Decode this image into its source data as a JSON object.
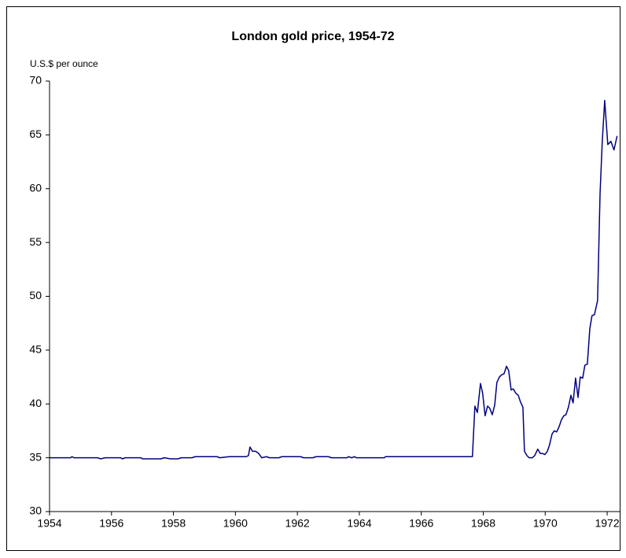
{
  "chart_data": {
    "type": "line",
    "title": "London gold price, 1954-72",
    "y_axis_label": "U.S.$ per ounce",
    "x": [
      1954.0,
      1954.68,
      1954.72,
      1954.8,
      1955.55,
      1955.65,
      1955.8,
      1956.3,
      1956.35,
      1956.45,
      1956.95,
      1957.0,
      1957.6,
      1957.7,
      1957.9,
      1958.15,
      1958.25,
      1958.6,
      1958.7,
      1959.4,
      1959.5,
      1959.8,
      1960.35,
      1960.42,
      1960.47,
      1960.55,
      1960.65,
      1960.75,
      1960.85,
      1961.0,
      1961.1,
      1961.4,
      1961.5,
      1962.1,
      1962.2,
      1962.5,
      1962.6,
      1963.0,
      1963.1,
      1963.6,
      1963.65,
      1963.75,
      1963.85,
      1963.9,
      1964.8,
      1964.85,
      1967.65,
      1967.73,
      1967.81,
      1967.91,
      1967.98,
      1968.06,
      1968.14,
      1968.21,
      1968.29,
      1968.37,
      1968.44,
      1968.52,
      1968.59,
      1968.67,
      1968.75,
      1968.82,
      1968.9,
      1968.97,
      1969.05,
      1969.13,
      1969.2,
      1969.28,
      1969.33,
      1969.41,
      1969.48,
      1969.58,
      1969.66,
      1969.76,
      1969.84,
      1969.91,
      1969.99,
      1970.07,
      1970.14,
      1970.22,
      1970.29,
      1970.37,
      1970.45,
      1970.52,
      1970.6,
      1970.67,
      1970.75,
      1970.83,
      1970.9,
      1970.98,
      1971.06,
      1971.13,
      1971.21,
      1971.28,
      1971.36,
      1971.44,
      1971.51,
      1971.59,
      1971.69,
      1971.77,
      1971.84,
      1971.92,
      1972.02,
      1972.12,
      1972.22,
      1972.32
    ],
    "series": [
      {
        "name": "London gold price",
        "color": "#000080",
        "values": [
          35.0,
          35.0,
          35.1,
          35.0,
          35.0,
          34.9,
          35.0,
          35.0,
          34.9,
          35.0,
          35.0,
          34.9,
          34.9,
          35.0,
          34.9,
          34.9,
          35.0,
          35.0,
          35.1,
          35.1,
          35.0,
          35.1,
          35.1,
          35.2,
          36.0,
          35.6,
          35.6,
          35.4,
          35.0,
          35.1,
          35.0,
          35.0,
          35.1,
          35.1,
          35.0,
          35.0,
          35.1,
          35.1,
          35.0,
          35.0,
          35.1,
          35.0,
          35.1,
          35.0,
          35.0,
          35.1,
          35.1,
          39.8,
          39.2,
          41.9,
          41.0,
          38.9,
          39.8,
          39.6,
          39.0,
          39.9,
          42.0,
          42.5,
          42.7,
          42.8,
          43.5,
          43.1,
          41.3,
          41.4,
          41.0,
          40.8,
          40.2,
          39.7,
          35.6,
          35.2,
          35.0,
          35.0,
          35.2,
          35.8,
          35.4,
          35.4,
          35.3,
          35.6,
          36.2,
          37.2,
          37.5,
          37.4,
          37.9,
          38.5,
          38.9,
          39.0,
          39.7,
          40.8,
          40.1,
          42.4,
          40.6,
          42.5,
          42.4,
          43.6,
          43.7,
          47.0,
          48.2,
          48.3,
          49.6,
          59.5,
          64.3,
          68.2,
          64.1,
          64.4,
          63.6,
          64.9
        ]
      }
    ],
    "xlim": [
      1954,
      1972.43
    ],
    "xticks": [
      1954,
      1956,
      1958,
      1960,
      1962,
      1964,
      1966,
      1968,
      1970,
      1972
    ],
    "ylim": [
      30,
      70
    ],
    "yticks": [
      30,
      35,
      40,
      45,
      50,
      55,
      60,
      65,
      70
    ],
    "grid": false
  }
}
